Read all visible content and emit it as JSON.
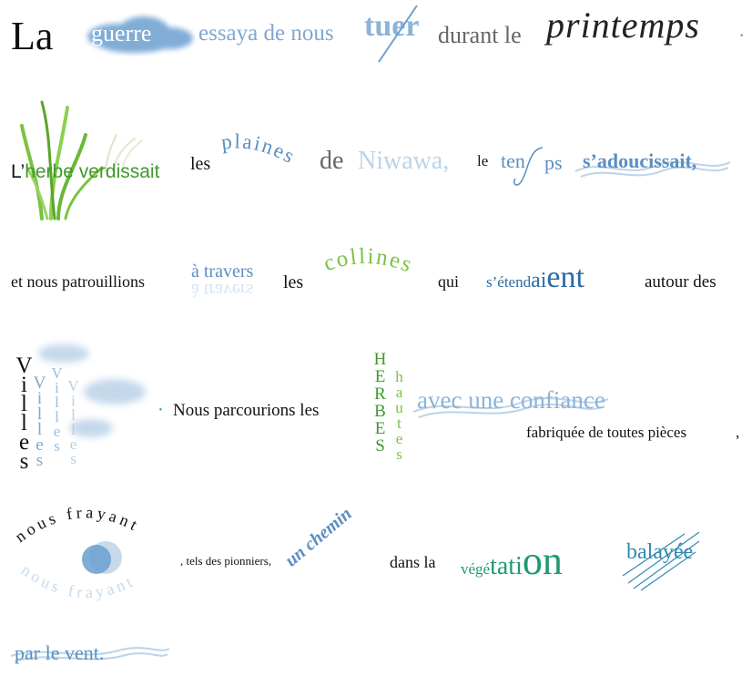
{
  "colors": {
    "black": "#111111",
    "blue": "#5b8fc0",
    "light_blue": "#9dbedd",
    "pale_blue": "#c7daec",
    "dark_blue": "#2f6aa3",
    "gray": "#6e6e6e",
    "green": "#3f9a2a",
    "light_green": "#7cc242",
    "teal": "#1f9a74",
    "cloud": "#6a9fd0"
  },
  "line1": {
    "la": "La",
    "guerre": "guerre",
    "essaya": "essaya de nous",
    "tuer": "tuer",
    "durant": "durant le",
    "printemps": "printemps",
    "dot": "."
  },
  "line2": {
    "l_apos": "L’",
    "herbe_verdissait": "herbe verdissait",
    "les": "les",
    "plaines": "plaines",
    "de": "de",
    "niwawa": "Niwawa,",
    "le": "le",
    "ten": "ten",
    "ps": "ps",
    "sadoucissait": "s’adoucissait,"
  },
  "line3": {
    "patrouillions": "et nous patrouillions",
    "a_travers": "à travers",
    "les": "les",
    "collines": "collines",
    "qui": "qui",
    "setendaient_small": "s’étend",
    "setendaient_mid": "ai",
    "setendaient_big": "ent",
    "autour": "autour des"
  },
  "line4": {
    "villes": "Villes",
    "villes_b": "Villes",
    "villes_c": "Villes",
    "villes_d": "Villes",
    "dot": "·",
    "parcourions": "Nous parcourions les",
    "herbes": "HERBES",
    "hautes": "hautes",
    "confiance": "avec une confiance",
    "fabriquee": "fabriquée de toutes pièces",
    "comma": ","
  },
  "line5": {
    "nous_frayant": "nous frayant",
    "pionniers": ", tels des pionniers,",
    "chemin": "un chemin",
    "dans_la": "dans la",
    "vege": "végé",
    "tati": "tati",
    "on": "on",
    "balayee": "balayée"
  },
  "line6": {
    "par_le_vent": "par le vent."
  }
}
